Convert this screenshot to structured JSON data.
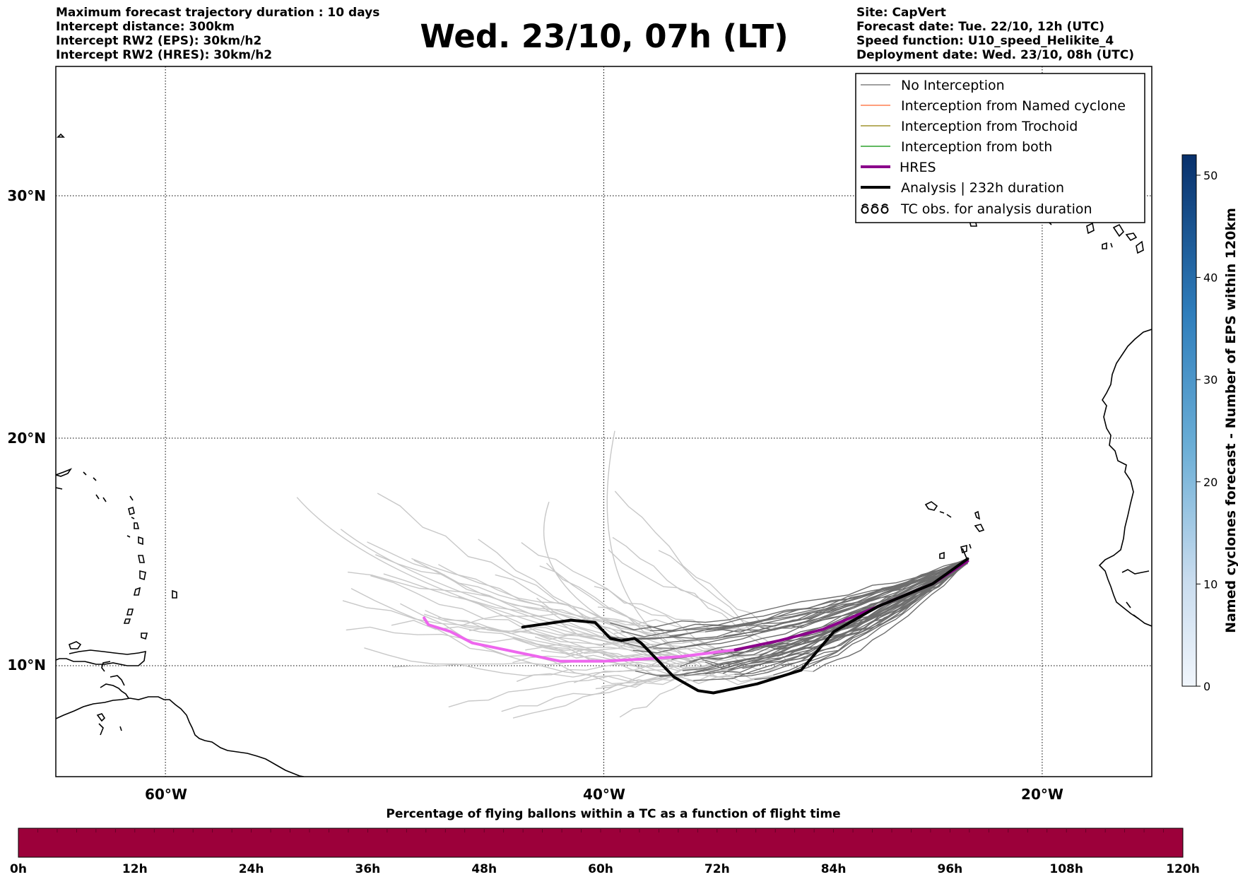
{
  "header": {
    "left_lines": [
      "Maximum forecast trajectory duration : 10 days",
      "Intercept distance: 300km",
      "Intercept RW2 (EPS):  30km/h2",
      "Intercept RW2 (HRES): 30km/h2"
    ],
    "title": "Wed. 23/10, 07h (LT)",
    "right_lines": [
      "Site: CapVert",
      "Forecast date: Tue. 22/10, 12h (UTC)",
      "Speed function: U10_speed_Helikite_4",
      "Deployment date: Wed. 23/10, 08h (UTC)"
    ]
  },
  "map": {
    "extent": {
      "lon_min": -65,
      "lon_max": -15,
      "lat_min": 5,
      "lat_max": 35
    },
    "lat_gridlines": [
      {
        "value": 30,
        "label": "30°N"
      },
      {
        "value": 20,
        "label": "20°N"
      },
      {
        "value": 10,
        "label": "10°N"
      }
    ],
    "lon_gridlines": [
      {
        "value": -60,
        "label": "60°W"
      },
      {
        "value": -40,
        "label": "40°W"
      },
      {
        "value": -20,
        "label": "20°W"
      }
    ],
    "colors": {
      "no_interception": "#808080",
      "named_cyclone": "#ff7f50",
      "trochoid": "#a0942e",
      "both": "#2ca02c",
      "hres": "#8b008b",
      "hres_light": "#ee66ee",
      "analysis": "#000000",
      "ensemble_light": "#c8c8c8",
      "ensemble_dark": "#6e6e6e"
    },
    "hres_track": [
      [
        -23.4,
        14.6
      ],
      [
        -25,
        13.6
      ],
      [
        -27,
        12.8
      ],
      [
        -30,
        11.6
      ],
      [
        -32,
        11.1
      ],
      [
        -34,
        10.7
      ],
      [
        -36.5,
        10.4
      ],
      [
        -38,
        10.3
      ],
      [
        -40,
        10.2
      ],
      [
        -42,
        10.2
      ],
      [
        -44,
        10.6
      ],
      [
        -46,
        11.0
      ],
      [
        -47,
        11.5
      ],
      [
        -48,
        11.8
      ],
      [
        -48.2,
        12.1
      ]
    ],
    "analysis_track": [
      [
        -23.4,
        14.7
      ],
      [
        -25,
        13.6
      ],
      [
        -27.5,
        12.6
      ],
      [
        -29.5,
        11.5
      ],
      [
        -31,
        9.8
      ],
      [
        -33,
        9.2
      ],
      [
        -35,
        8.8
      ],
      [
        -35.7,
        8.9
      ],
      [
        -36.8,
        9.5
      ],
      [
        -38.3,
        11.0
      ],
      [
        -38.6,
        11.2
      ],
      [
        -39.2,
        11.1
      ],
      [
        -39.7,
        11.2
      ],
      [
        -40.4,
        11.9
      ],
      [
        -41.5,
        12.0
      ],
      [
        -43.7,
        11.7
      ]
    ]
  },
  "legend": {
    "items": [
      {
        "label": "No Interception",
        "style": "thin",
        "color": "#808080"
      },
      {
        "label": "Interception from Named cyclone",
        "style": "thin",
        "color": "#ff7f50"
      },
      {
        "label": "Interception from Trochoid",
        "style": "thin",
        "color": "#a0942e"
      },
      {
        "label": "Interception from both",
        "style": "thin",
        "color": "#2ca02c"
      },
      {
        "label": "HRES",
        "style": "thick",
        "color": "#8b008b"
      },
      {
        "label": "Analysis | 232h duration",
        "style": "thick",
        "color": "#000000"
      },
      {
        "label": "TC obs. for analysis duration",
        "style": "tc-symbol",
        "color": "#000000"
      }
    ]
  },
  "colorbar_right": {
    "label": "Named cyclones forecast - Number of EPS within 120km",
    "ticks": [
      "0",
      "10",
      "20",
      "30",
      "40",
      "50"
    ],
    "min": 0,
    "max": 52,
    "color_low": "#e6eef8",
    "color_high": "#08306b"
  },
  "colorbar_bottom": {
    "title": "Percentage of flying ballons within a TC as a function of flight time",
    "ticks": [
      "0h",
      "12h",
      "24h",
      "36h",
      "48h",
      "60h",
      "72h",
      "84h",
      "96h",
      "108h",
      "120h"
    ],
    "fill_color": "#9c003a",
    "segments": 60
  }
}
